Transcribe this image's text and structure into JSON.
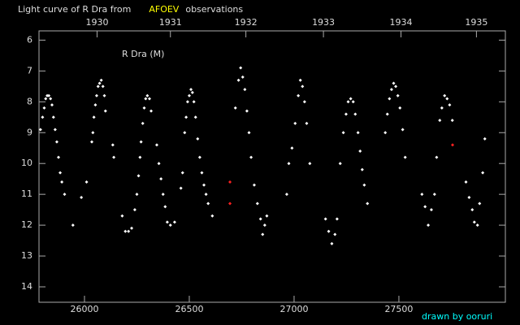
{
  "chart_data": {
    "type": "scatter",
    "title_parts": [
      "Light curve of R Dra from",
      "AFOEV",
      "observations"
    ],
    "title_colors": [
      "#dddddd",
      "#ffff00",
      "#dddddd"
    ],
    "annotation": "R Dra (M)",
    "credit": "drawn by ooruri",
    "background": "#000000",
    "y_inverted": true,
    "xlim": [
      25783,
      28008
    ],
    "ylim": [
      5.7,
      14.5
    ],
    "xticks": [
      26000,
      26500,
      27000,
      27500
    ],
    "yticks": [
      6,
      7,
      8,
      9,
      10,
      11,
      12,
      13,
      14
    ],
    "x2ticks": [
      {
        "value": 26060,
        "label": "1930"
      },
      {
        "value": 26410,
        "label": "1931"
      },
      {
        "value": 26770,
        "label": "1932"
      },
      {
        "value": 27140,
        "label": "1933"
      },
      {
        "value": 27510,
        "label": "1934"
      },
      {
        "value": 27870,
        "label": "1935"
      }
    ],
    "series": [
      {
        "color": "#ffffff",
        "x": [
          25790,
          25800,
          25808,
          25815,
          25822,
          25830,
          25838,
          25845,
          25852,
          25860,
          25868,
          25876,
          25884,
          25892,
          25905,
          25945,
          25985,
          26010,
          26035,
          26040,
          26045,
          26052,
          26058,
          26065,
          26072,
          26080,
          26088,
          26095,
          26100,
          26135,
          26140,
          26180,
          26195,
          26210,
          26225,
          26240,
          26250,
          26258,
          26265,
          26270,
          26278,
          26285,
          26292,
          26300,
          26310,
          26318,
          26345,
          26355,
          26365,
          26375,
          26385,
          26395,
          26410,
          26430,
          26460,
          26468,
          26478,
          26485,
          26492,
          26500,
          26508,
          26515,
          26522,
          26530,
          26540,
          26550,
          26560,
          26570,
          26580,
          26590,
          26610,
          26720,
          26735,
          26745,
          26755,
          26765,
          26775,
          26785,
          26795,
          26810,
          26825,
          26840,
          26850,
          26860,
          26870,
          26965,
          26975,
          26990,
          27005,
          27020,
          27030,
          27040,
          27050,
          27060,
          27075,
          27150,
          27165,
          27180,
          27195,
          27205,
          27220,
          27235,
          27248,
          27258,
          27270,
          27282,
          27292,
          27305,
          27315,
          27325,
          27335,
          27350,
          27435,
          27445,
          27455,
          27465,
          27475,
          27485,
          27495,
          27505,
          27518,
          27530,
          27610,
          27625,
          27640,
          27655,
          27670,
          27680,
          27695,
          27705,
          27718,
          27730,
          27742,
          27755,
          27820,
          27835,
          27850,
          27860,
          27875,
          27885,
          27900,
          27910
        ],
        "values": [
          8.9,
          8.5,
          8.2,
          7.9,
          7.8,
          7.8,
          7.9,
          8.1,
          8.5,
          8.9,
          9.3,
          9.8,
          10.3,
          10.6,
          11.0,
          12.0,
          11.1,
          10.6,
          9.3,
          9.0,
          8.5,
          8.1,
          7.8,
          7.5,
          7.4,
          7.3,
          7.5,
          7.8,
          8.3,
          9.4,
          9.8,
          11.7,
          12.2,
          12.2,
          12.1,
          11.5,
          11.0,
          10.4,
          9.8,
          9.3,
          8.7,
          8.2,
          7.9,
          7.8,
          7.9,
          8.3,
          9.4,
          10.0,
          10.5,
          11.0,
          11.4,
          11.9,
          12.0,
          11.9,
          10.8,
          10.3,
          9.0,
          8.5,
          8.0,
          7.8,
          7.6,
          7.7,
          8.0,
          8.5,
          9.2,
          9.8,
          10.3,
          10.7,
          11.0,
          11.3,
          11.7,
          8.2,
          7.3,
          6.9,
          7.2,
          7.6,
          8.3,
          9.0,
          9.8,
          10.7,
          11.3,
          11.8,
          12.3,
          12.0,
          11.7,
          11.0,
          10.0,
          9.5,
          8.7,
          7.8,
          7.3,
          7.5,
          8.0,
          8.7,
          10.0,
          11.8,
          12.2,
          12.6,
          12.3,
          11.8,
          10.0,
          9.0,
          8.4,
          8.0,
          7.9,
          8.0,
          8.4,
          9.0,
          9.6,
          10.2,
          10.7,
          11.3,
          9.0,
          8.4,
          7.9,
          7.6,
          7.4,
          7.5,
          7.8,
          8.2,
          8.9,
          9.8,
          11.0,
          11.4,
          12.0,
          11.5,
          11.0,
          9.8,
          8.6,
          8.2,
          7.8,
          7.9,
          8.1,
          8.6,
          10.6,
          11.1,
          11.5,
          11.9,
          12.0,
          11.3,
          10.3,
          9.2
        ]
      },
      {
        "color": "#ff2020",
        "x": [
          26694,
          26694,
          27756
        ],
        "values": [
          10.6,
          11.3,
          9.4
        ]
      }
    ]
  }
}
